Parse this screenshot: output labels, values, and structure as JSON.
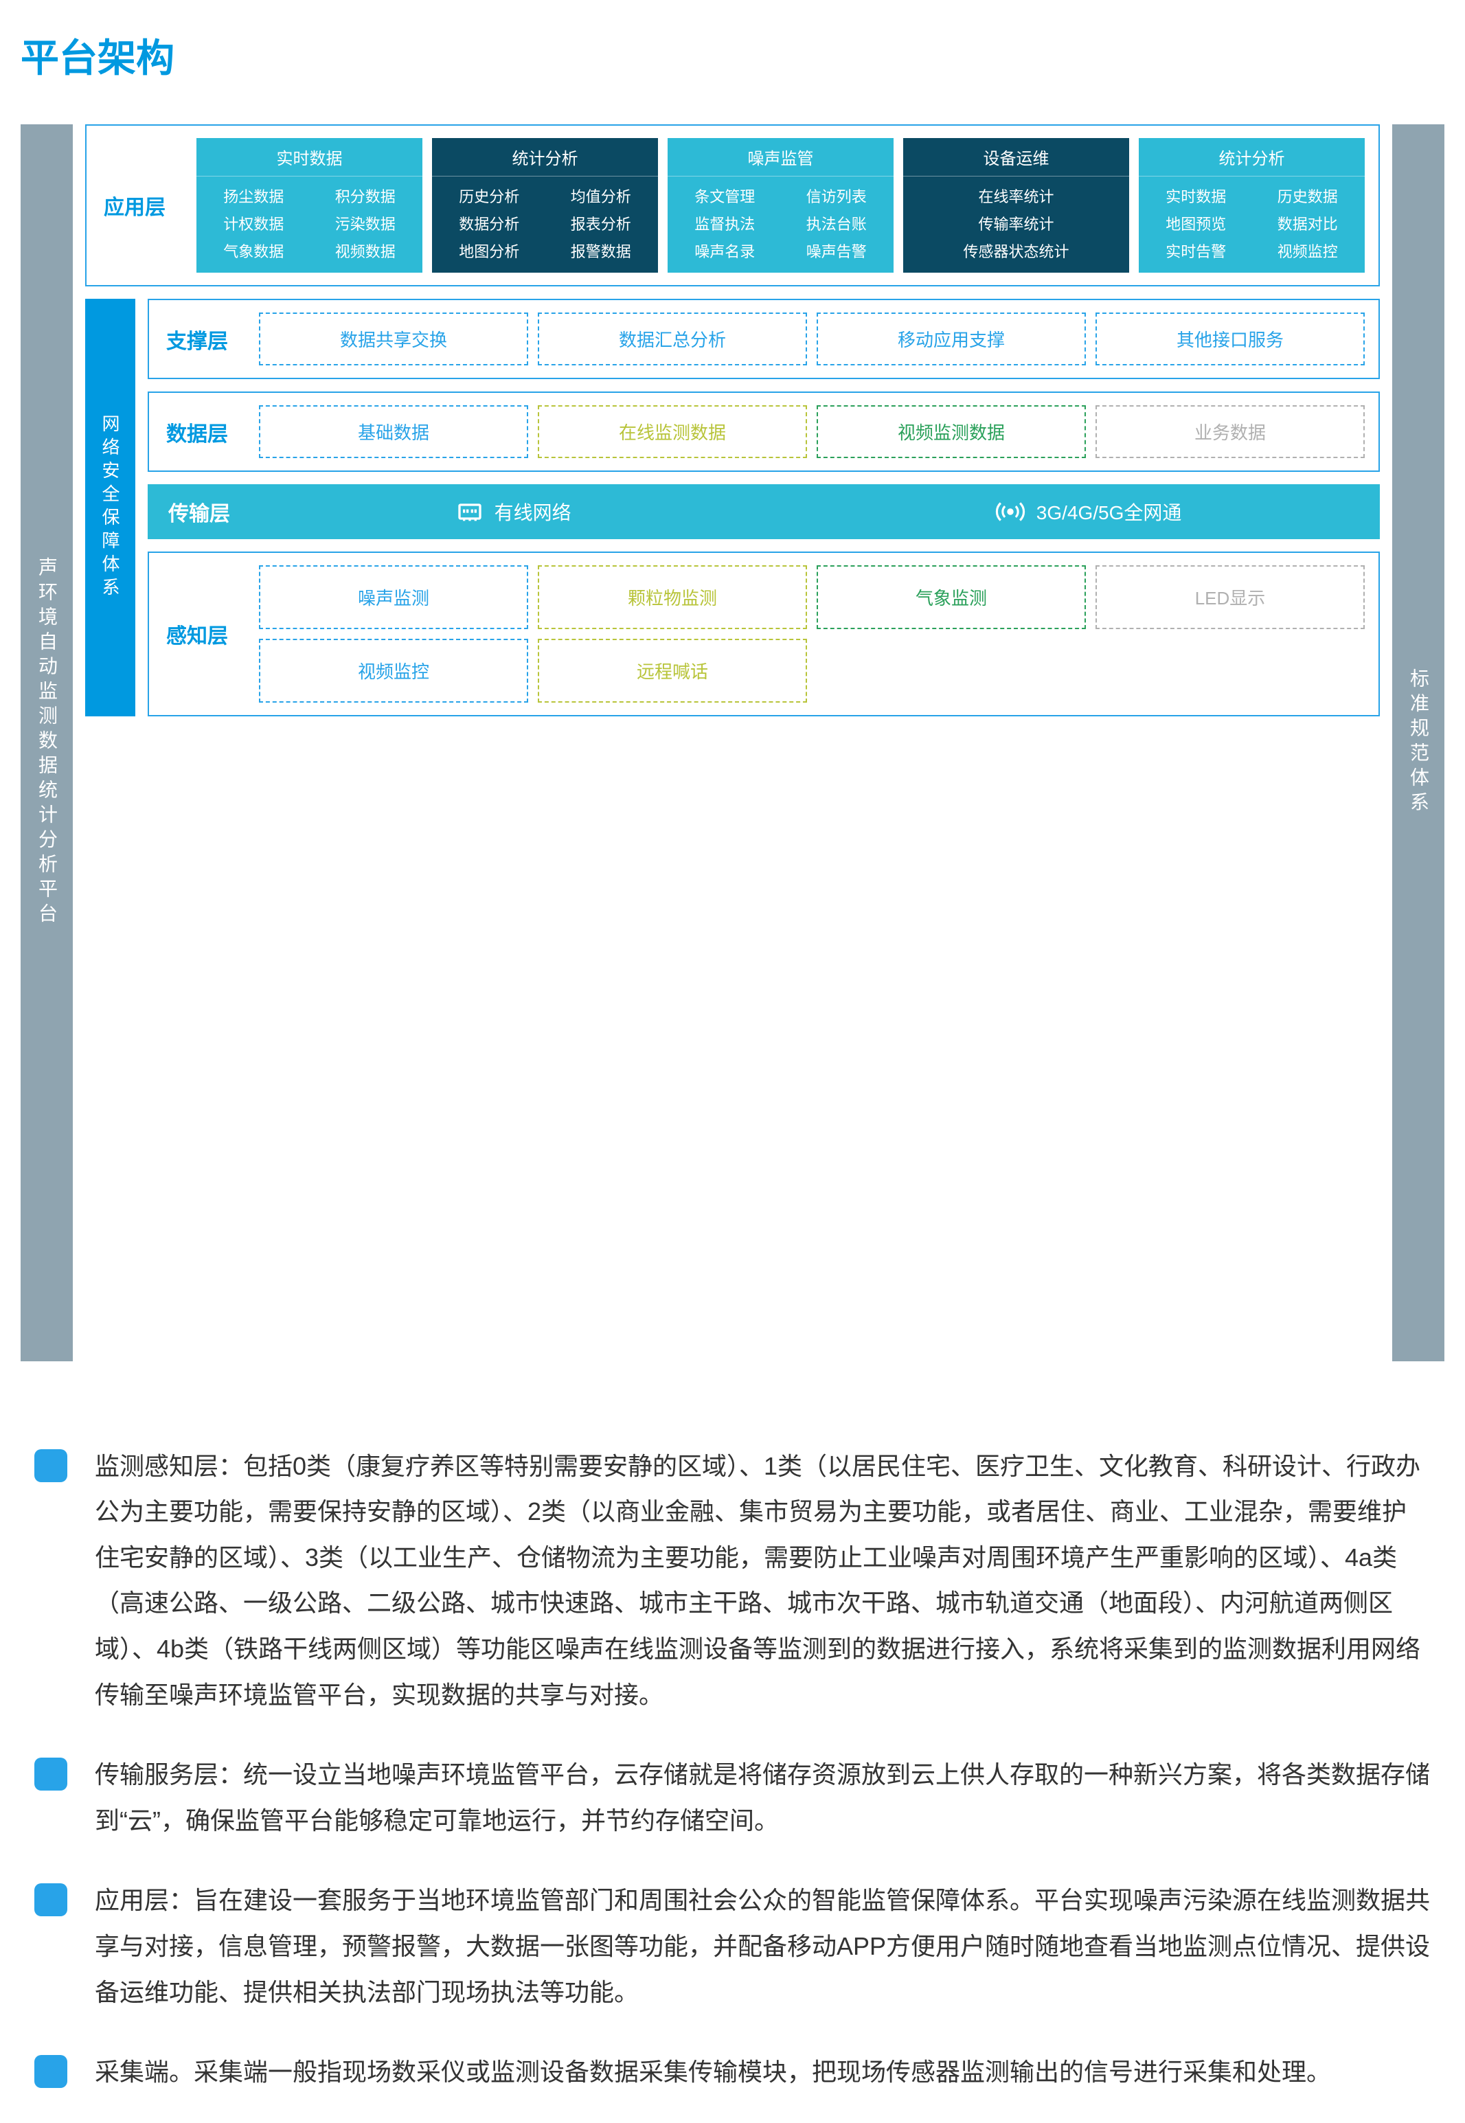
{
  "title": "平台架构",
  "colors": {
    "primary": "#0099e0",
    "light_teal": "#2dbad6",
    "dark_teal": "#0b4a63",
    "grey": "#8fa4b0",
    "dash_blue": "#28a3e8",
    "dash_olive": "#b8c43a",
    "dash_green": "#2aa05a",
    "dash_grey": "#b0b0b0"
  },
  "left_outer": "声环境自动监测数据统计分析平台",
  "left_inner": "网络安全保障体系",
  "right_outer": "标准规范体系",
  "layers": {
    "app": {
      "label": "应用层",
      "blocks": [
        {
          "tone": "light",
          "header": "实时数据",
          "items": [
            "扬尘数据",
            "积分数据",
            "计权数据",
            "污染数据",
            "气象数据",
            "视频数据"
          ]
        },
        {
          "tone": "dark",
          "header": "统计分析",
          "items": [
            "历史分析",
            "均值分析",
            "数据分析",
            "报表分析",
            "地图分析",
            "报警数据"
          ]
        },
        {
          "tone": "light",
          "header": "噪声监管",
          "items": [
            "条文管理",
            "信访列表",
            "监督执法",
            "执法台账",
            "噪声名录",
            "噪声告警"
          ]
        },
        {
          "tone": "dark",
          "header": "设备运维",
          "single": true,
          "items": [
            "在线率统计",
            "传输率统计",
            "传感器状态统计"
          ]
        },
        {
          "tone": "light",
          "header": "统计分析",
          "items": [
            "实时数据",
            "历史数据",
            "地图预览",
            "数据对比",
            "实时告警",
            "视频监控"
          ]
        }
      ]
    },
    "support": {
      "label": "支撑层",
      "boxes": [
        {
          "text": "数据共享交换",
          "color": "#28a3e8"
        },
        {
          "text": "数据汇总分析",
          "color": "#28a3e8"
        },
        {
          "text": "移动应用支撑",
          "color": "#28a3e8"
        },
        {
          "text": "其他接口服务",
          "color": "#28a3e8"
        }
      ]
    },
    "data": {
      "label": "数据层",
      "boxes": [
        {
          "text": "基础数据",
          "color": "#28a3e8"
        },
        {
          "text": "在线监测数据",
          "color": "#b8c43a"
        },
        {
          "text": "视频监测数据",
          "color": "#2aa05a"
        },
        {
          "text": "业务数据",
          "color": "#b0b0b0"
        }
      ]
    },
    "transport": {
      "label": "传输层",
      "items": [
        "有线网络",
        "3G/4G/5G全网通"
      ]
    },
    "sense": {
      "label": "感知层",
      "boxes": [
        {
          "text": "噪声监测",
          "color": "#28a3e8"
        },
        {
          "text": "颗粒物监测",
          "color": "#b8c43a"
        },
        {
          "text": "气象监测",
          "color": "#2aa05a"
        },
        {
          "text": "LED显示",
          "color": "#b0b0b0"
        },
        {
          "text": "视频监控",
          "color": "#28a3e8"
        },
        {
          "text": "远程喊话",
          "color": "#b8c43a"
        }
      ]
    }
  },
  "descriptions": [
    "监测感知层：包括0类（康复疗养区等特别需要安静的区域）、1类（以居民住宅、医疗卫生、文化教育、科研设计、行政办公为主要功能，需要保持安静的区域）、2类（以商业金融、集市贸易为主要功能，或者居住、商业、工业混杂，需要维护住宅安静的区域）、3类（以工业生产、仓储物流为主要功能，需要防止工业噪声对周围环境产生严重影响的区域）、4a类（高速公路、一级公路、二级公路、城市快速路、城市主干路、城市次干路、城市轨道交通（地面段）、内河航道两侧区域）、4b类（铁路干线两侧区域）等功能区噪声在线监测设备等监测到的数据进行接入，系统将采集到的监测数据利用网络传输至噪声环境监管平台，实现数据的共享与对接。",
    "传输服务层：统一设立当地噪声环境监管平台，云存储就是将储存资源放到云上供人存取的一种新兴方案，将各类数据存储到“云”，确保监管平台能够稳定可靠地运行，并节约存储空间。",
    "应用层：旨在建设一套服务于当地环境监管部门和周围社会公众的智能监管保障体系。平台实现噪声污染源在线监测数据共享与对接，信息管理，预警报警，大数据一张图等功能，并配备移动APP方便用户随时随地查看当地监测点位情况、提供设备运维功能、提供相关执法部门现场执法等功能。",
    "采集端。采集端一般指现场数采仪或监测设备数据采集传输模块，把现场传感器监测输出的信号进行采集和处理。"
  ]
}
